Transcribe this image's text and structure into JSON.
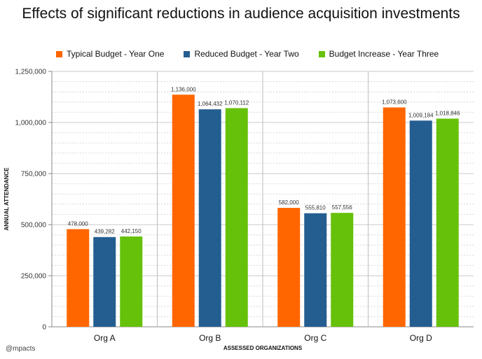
{
  "footer": "@mpacts",
  "chart_data": {
    "type": "bar",
    "title": "Effects of significant reductions in audience acquisition investments",
    "xlabel": "ASSESSED ORGANIZATIONS",
    "ylabel": "ANNUAL ATTENDANCE",
    "ylim": [
      0,
      1250000
    ],
    "yticks": [
      0,
      250000,
      500000,
      750000,
      1000000,
      1250000
    ],
    "ytick_labels": [
      "0",
      "250,000",
      "500,000",
      "750,000",
      "1,000,000",
      "1,250,000"
    ],
    "categories": [
      "Org A",
      "Org B",
      "Org C",
      "Org D"
    ],
    "legend_position": "top",
    "grid": true,
    "series": [
      {
        "name": "Typical Budget - Year One",
        "color": "#ff6600",
        "values": [
          478000,
          1136000,
          582000,
          1073600
        ],
        "labels": [
          "478,000",
          "1,136,000",
          "582,000",
          "1,073,600"
        ]
      },
      {
        "name": "Reduced Budget - Year Two",
        "color": "#245e91",
        "values": [
          439282,
          1064432,
          555810,
          1009184
        ],
        "labels": [
          "439,282",
          "1,064,432",
          "555,810",
          "1,009,184"
        ]
      },
      {
        "name": "Budget Increase - Year Three",
        "color": "#66c10a",
        "values": [
          442150,
          1070112,
          557556,
          1018846
        ],
        "labels": [
          "442,150",
          "1,070,112",
          "557,556",
          "1,018,846"
        ]
      }
    ]
  }
}
